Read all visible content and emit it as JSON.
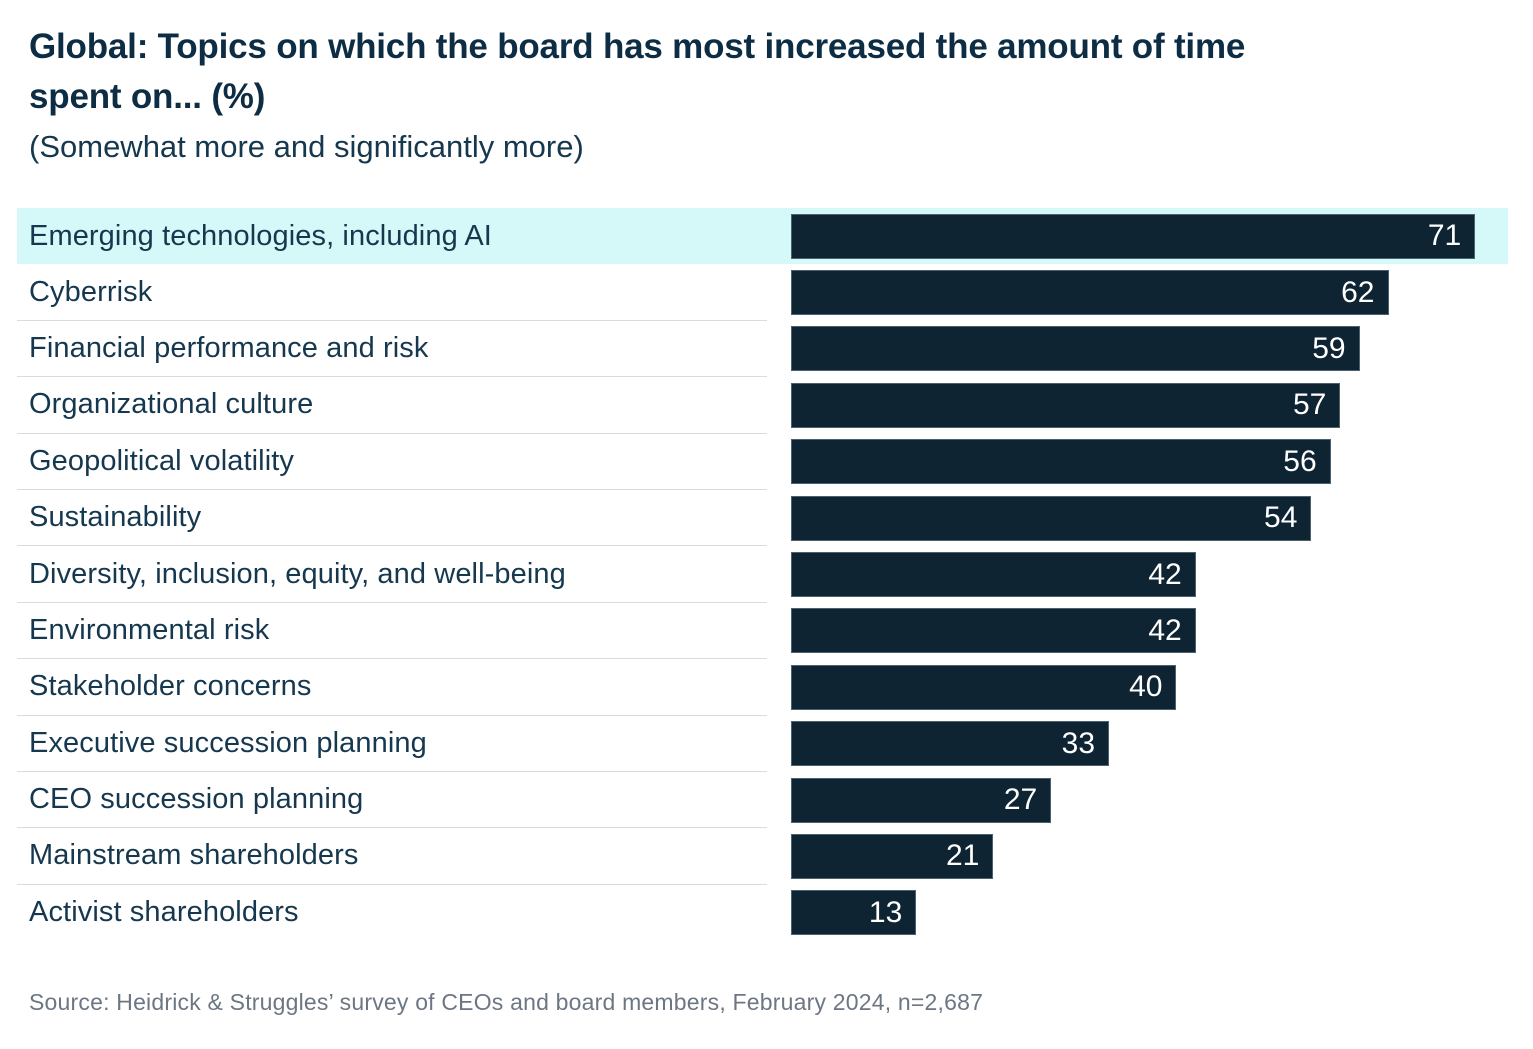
{
  "header": {
    "title_line1": "Global: Topics on which the board has most increased the amount of time",
    "title_line2": "spent on... (%)",
    "subtitle": "(Somewhat more and significantly more)"
  },
  "chart_data": {
    "type": "bar",
    "orientation": "horizontal",
    "title": "Global: Topics on which the board has most increased the amount of time spent on... (%)",
    "subtitle": "(Somewhat more and significantly more)",
    "categories": [
      "Emerging technologies, including AI",
      "Cyberrisk",
      "Financial performance and risk",
      "Organizational culture",
      "Geopolitical volatility",
      "Sustainability",
      "Diversity, inclusion, equity, and well-being",
      "Environmental risk",
      "Stakeholder concerns",
      "Executive succession planning",
      "CEO succession planning",
      "Mainstream shareholders",
      "Activist shareholders"
    ],
    "values": [
      71,
      62,
      59,
      57,
      56,
      54,
      42,
      42,
      40,
      33,
      27,
      21,
      13
    ],
    "highlighted_category": "Emerging technologies, including AI",
    "value_label_position": "inside-end",
    "xlabel": "",
    "ylabel": "",
    "xlim": [
      0,
      74.4
    ],
    "grid": false,
    "legend": false,
    "colors": {
      "bar": "#0e2433",
      "highlight_band": "#d5f8f8",
      "value_label": "#ffffff",
      "category_label": "#16384f",
      "title": "#0d2d44",
      "separator": "#d9dcde",
      "source_text": "#6d7683"
    }
  },
  "footer": {
    "source": "Source: Heidrick & Struggles’ survey of CEOs and board members, February 2024, n=2,687"
  }
}
